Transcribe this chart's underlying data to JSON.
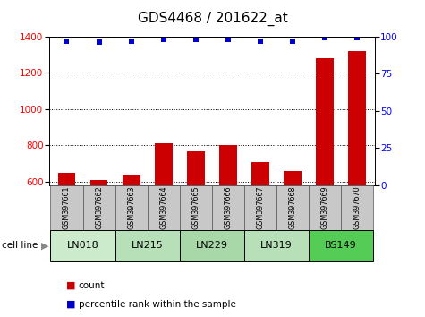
{
  "title": "GDS4468 / 201622_at",
  "samples": [
    "GSM397661",
    "GSM397662",
    "GSM397663",
    "GSM397664",
    "GSM397665",
    "GSM397666",
    "GSM397667",
    "GSM397668",
    "GSM397669",
    "GSM397670"
  ],
  "counts": [
    648,
    612,
    642,
    810,
    770,
    800,
    710,
    660,
    1280,
    1320
  ],
  "percentile_ranks": [
    97,
    96,
    97,
    98,
    98,
    98,
    97,
    97,
    99,
    99
  ],
  "cell_lines": [
    {
      "name": "LN018",
      "samples": [
        0,
        1
      ],
      "color": "#cceacc"
    },
    {
      "name": "LN215",
      "samples": [
        2,
        3
      ],
      "color": "#b8e0b8"
    },
    {
      "name": "LN229",
      "samples": [
        4,
        5
      ],
      "color": "#a8d8a8"
    },
    {
      "name": "LN319",
      "samples": [
        6,
        7
      ],
      "color": "#b8e0b8"
    },
    {
      "name": "BS149",
      "samples": [
        8,
        9
      ],
      "color": "#55cc55"
    }
  ],
  "ylim_left": [
    580,
    1400
  ],
  "ylim_right": [
    0,
    100
  ],
  "yticks_left": [
    600,
    800,
    1000,
    1200,
    1400
  ],
  "yticks_right": [
    0,
    25,
    50,
    75,
    100
  ],
  "bar_color": "#cc0000",
  "dot_color": "#0000cc",
  "bar_width": 0.55,
  "grid_color": "#000000",
  "title_fontsize": 11,
  "tick_fontsize": 7.5,
  "sample_bg_color": "#c8c8c8",
  "sample_border_color": "#555555",
  "legend_bar_color": "#cc0000",
  "legend_dot_color": "#0000cc"
}
